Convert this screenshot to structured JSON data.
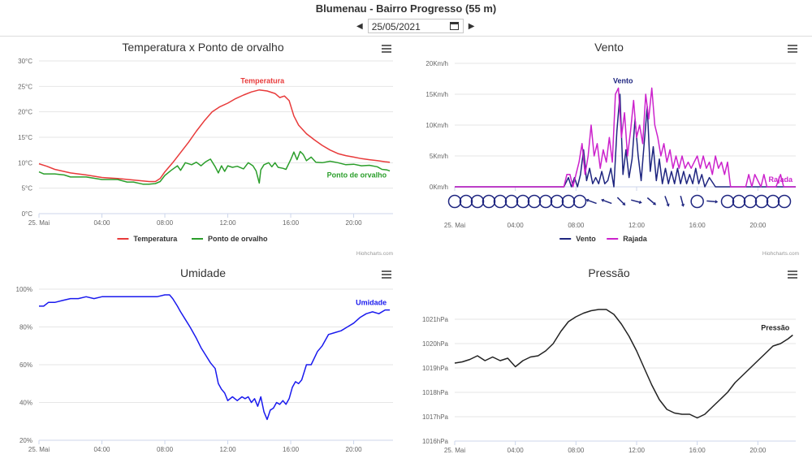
{
  "header": {
    "title": "Blumenau - Bairro Progresso (55 m)",
    "date": "25/05/2021"
  },
  "credits": "Highcharts.com",
  "chart_data": [
    {
      "type": "line",
      "title": "Temperatura x Ponto de orvalho",
      "y_unit": "°C",
      "ylim": [
        0,
        30
      ],
      "y_ticks": [
        0,
        5,
        10,
        15,
        20,
        25,
        30
      ],
      "xlim": [
        0,
        22.5
      ],
      "x_ticks": [
        0,
        4,
        8,
        12,
        16,
        20
      ],
      "x_tick_labels": [
        "25. Mai",
        "04:00",
        "08:00",
        "12:00",
        "16:00",
        "20:00"
      ],
      "series": [
        {
          "name": "Temperatura",
          "color": "#e83a3a",
          "end_label": false,
          "point_label": "Temperatura",
          "x": [
            0,
            0.5,
            1,
            2,
            3,
            4,
            5,
            6,
            7,
            7.4,
            7.7,
            8,
            8.5,
            9,
            9.5,
            10,
            10.5,
            11,
            11.5,
            12,
            12.5,
            13,
            13.5,
            14,
            14.5,
            15,
            15.3,
            15.6,
            15.9,
            16.2,
            16.5,
            17,
            17.5,
            18,
            18.5,
            19,
            19.5,
            20,
            20.5,
            21,
            21.5,
            22,
            22.3
          ],
          "values": [
            9.8,
            9.3,
            8.7,
            8,
            7.6,
            7.1,
            6.9,
            6.6,
            6.3,
            6.3,
            6.9,
            8.2,
            10,
            12,
            14,
            16.2,
            18.2,
            20,
            21,
            21.7,
            22.6,
            23.3,
            23.9,
            24.3,
            24.1,
            23.6,
            22.8,
            23.1,
            22.2,
            19.2,
            17.4,
            15.7,
            14.5,
            13.4,
            12.5,
            11.8,
            11.4,
            11.1,
            10.8,
            10.6,
            10.4,
            10.2,
            10.1
          ]
        },
        {
          "name": "Ponto de orvalho",
          "color": "#2b9e2b",
          "end_label": true,
          "x": [
            0,
            0.3,
            1,
            1.6,
            2,
            3,
            4,
            5,
            5.6,
            6,
            6.6,
            7,
            7.4,
            7.7,
            8,
            8.4,
            8.8,
            9,
            9.3,
            9.7,
            10,
            10.3,
            10.6,
            10.9,
            11.2,
            11.4,
            11.6,
            11.8,
            12,
            12.3,
            12.6,
            13,
            13.3,
            13.6,
            13.8,
            14,
            14.1,
            14.3,
            14.6,
            14.8,
            15,
            15.2,
            15.5,
            15.7,
            16,
            16.2,
            16.4,
            16.6,
            16.8,
            17,
            17.3,
            17.6,
            18,
            18.5,
            19,
            19.5,
            20,
            20.5,
            21,
            21.5,
            21.8,
            22.1,
            22.3
          ],
          "values": [
            8.2,
            7.8,
            7.8,
            7.6,
            7.2,
            7.2,
            6.7,
            6.7,
            6.2,
            6.2,
            5.8,
            5.8,
            5.9,
            6.3,
            7.5,
            8.5,
            9.4,
            8.5,
            10,
            9.6,
            10.1,
            9.4,
            10.2,
            10.7,
            9.2,
            8,
            9.4,
            8.3,
            9.4,
            9.1,
            9.3,
            8.8,
            10,
            9.4,
            8.4,
            6,
            8.6,
            9.6,
            10,
            9.2,
            10,
            9.1,
            8.9,
            8.7,
            10.6,
            12.1,
            10.6,
            12.2,
            11.6,
            10.4,
            11.1,
            10.1,
            10,
            10.3,
            10,
            9.6,
            9.7,
            9.4,
            9.5,
            9.2,
            8.7,
            8.6,
            8.4
          ]
        }
      ]
    },
    {
      "type": "line",
      "title": "Vento",
      "y_unit": "Km/h",
      "ylim": [
        0,
        20
      ],
      "y_ticks": [
        0,
        5,
        10,
        15,
        20
      ],
      "xlim": [
        0,
        22.5
      ],
      "x_ticks": [
        0,
        4,
        8,
        12,
        16,
        20
      ],
      "x_tick_labels": [
        "25. Mai",
        "04:00",
        "08:00",
        "12:00",
        "16:00",
        "20:00"
      ],
      "series": [
        {
          "name": "Vento",
          "color": "#1f2680",
          "end_label": false,
          "point_label": "Vento",
          "x": [
            0,
            7.2,
            7.5,
            7.7,
            7.9,
            8.1,
            8.3,
            8.5,
            8.7,
            8.9,
            9.1,
            9.3,
            9.5,
            9.7,
            9.9,
            10.1,
            10.3,
            10.5,
            10.7,
            10.9,
            11.1,
            11.3,
            11.5,
            11.7,
            11.9,
            12.1,
            12.3,
            12.5,
            12.7,
            12.9,
            13.1,
            13.3,
            13.5,
            13.7,
            13.9,
            14.1,
            14.3,
            14.5,
            14.7,
            14.9,
            15.1,
            15.3,
            15.5,
            15.7,
            15.9,
            16.1,
            16.3,
            16.5,
            16.8,
            17.2,
            22.5
          ],
          "values": [
            0,
            0,
            1.5,
            0,
            1.5,
            0,
            2,
            6,
            1,
            3,
            0.5,
            1.5,
            0.5,
            2.5,
            0.5,
            1,
            3,
            0,
            9,
            15,
            2,
            6,
            1.5,
            4.5,
            11,
            5,
            1,
            7,
            13,
            2.5,
            6.5,
            1,
            4.5,
            0.5,
            3,
            0.5,
            2.5,
            0.5,
            3,
            0.5,
            2.5,
            0.5,
            2,
            0.5,
            3,
            0.5,
            2,
            0,
            1.5,
            0,
            0
          ]
        },
        {
          "name": "Rajada",
          "color": "#cc22cc",
          "end_label": true,
          "x": [
            0,
            7.2,
            7.4,
            7.6,
            7.8,
            8,
            8.2,
            8.4,
            8.6,
            8.8,
            9,
            9.2,
            9.4,
            9.6,
            9.8,
            10,
            10.2,
            10.4,
            10.6,
            10.8,
            11,
            11.2,
            11.4,
            11.6,
            11.8,
            12,
            12.2,
            12.4,
            12.6,
            12.8,
            13,
            13.2,
            13.4,
            13.6,
            13.8,
            14,
            14.2,
            14.4,
            14.6,
            14.8,
            15,
            15.2,
            15.4,
            15.6,
            15.8,
            16,
            16.2,
            16.4,
            16.6,
            16.8,
            17,
            17.2,
            17.4,
            17.6,
            17.8,
            18,
            18.2,
            19.2,
            19.4,
            19.6,
            19.8,
            20.2,
            20.4,
            20.6,
            20.8,
            21.2,
            21.5,
            21.7,
            22.5
          ],
          "values": [
            0,
            0,
            2,
            2,
            0,
            2,
            4,
            7,
            2,
            5,
            10,
            5,
            7,
            3,
            6,
            4,
            8,
            4,
            15,
            16,
            8,
            12,
            5,
            9,
            14,
            8,
            10,
            7,
            15,
            11,
            16,
            10,
            8,
            5,
            7,
            4,
            6,
            3,
            5,
            3,
            5,
            3,
            4,
            3,
            4,
            5,
            3,
            5,
            3,
            4,
            2,
            5,
            3,
            4,
            2,
            4,
            0,
            0,
            2,
            0,
            2,
            0,
            2,
            0,
            0,
            0,
            2,
            0,
            0
          ]
        }
      ],
      "wind_direction": {
        "x": [
          0,
          0.75,
          1.5,
          2.25,
          3,
          3.75,
          4.5,
          5.25,
          6,
          6.75,
          7.5,
          8.25,
          9,
          10,
          11,
          12,
          13,
          14,
          15,
          16,
          17,
          18,
          18.75,
          19.5,
          20.25,
          21,
          21.75
        ],
        "kind": [
          "calm",
          "calm",
          "calm",
          "calm",
          "calm",
          "calm",
          "calm",
          "calm",
          "calm",
          "calm",
          "calm",
          "calm",
          "arrow",
          "arrow",
          "arrow",
          "arrow",
          "arrow",
          "arrow",
          "arrow",
          "calm",
          "arrow",
          "calm",
          "calm",
          "calm",
          "calm",
          "calm",
          "calm"
        ],
        "angle": [
          0,
          0,
          0,
          0,
          0,
          0,
          0,
          0,
          0,
          0,
          0,
          0,
          200,
          200,
          45,
          15,
          40,
          70,
          75,
          0,
          5,
          0,
          0,
          0,
          0,
          0,
          0
        ]
      }
    },
    {
      "type": "line",
      "title": "Umidade",
      "y_unit": "%",
      "ylim": [
        20,
        100
      ],
      "y_ticks": [
        20,
        40,
        60,
        80,
        100
      ],
      "xlim": [
        0,
        22.5
      ],
      "x_ticks": [
        0,
        4,
        8,
        12,
        16,
        20
      ],
      "x_tick_labels": [
        "25. Mai",
        "04:00",
        "08:00",
        "12:00",
        "16:00",
        "20:00"
      ],
      "series": [
        {
          "name": "Umidade",
          "color": "#1a1aee",
          "end_label": true,
          "x": [
            0,
            0.3,
            0.6,
            1,
            1.5,
            2,
            2.5,
            3,
            3.5,
            4,
            5,
            6,
            7,
            7.5,
            8,
            8.3,
            8.5,
            8.8,
            9,
            9.3,
            9.6,
            10,
            10.3,
            10.6,
            10.9,
            11.2,
            11.4,
            11.6,
            11.8,
            12,
            12.3,
            12.6,
            12.9,
            13.1,
            13.3,
            13.5,
            13.7,
            13.9,
            14.1,
            14.3,
            14.5,
            14.7,
            14.9,
            15.1,
            15.3,
            15.5,
            15.7,
            15.9,
            16.1,
            16.3,
            16.5,
            16.7,
            17,
            17.3,
            17.7,
            18,
            18.4,
            18.8,
            19.2,
            19.6,
            20,
            20.4,
            20.8,
            21.2,
            21.6,
            22,
            22.3
          ],
          "values": [
            91,
            91,
            93,
            93,
            94,
            95,
            95,
            96,
            95,
            96,
            96,
            96,
            96,
            96,
            97,
            97,
            95,
            91,
            88,
            84,
            80,
            74,
            69,
            65,
            61,
            58,
            50,
            47,
            45,
            41,
            43,
            41,
            43,
            42,
            43,
            40,
            42,
            38,
            43,
            35,
            31,
            36,
            37,
            40,
            39,
            41,
            39,
            42,
            48,
            51,
            50,
            52,
            60,
            60,
            67,
            70,
            76,
            77,
            78,
            80,
            82,
            85,
            87,
            88,
            87,
            89,
            89
          ]
        }
      ]
    },
    {
      "type": "line",
      "title": "Pressão",
      "y_unit": "hPa",
      "ylim": [
        1016,
        1021.5
      ],
      "y_ticks": [
        1016,
        1017,
        1018,
        1019,
        1020,
        1021
      ],
      "xlim": [
        0,
        22.5
      ],
      "x_ticks": [
        0,
        4,
        8,
        12,
        16,
        20
      ],
      "x_tick_labels": [
        "25. Mai",
        "04:00",
        "08:00",
        "12:00",
        "16:00",
        "20:00"
      ],
      "series": [
        {
          "name": "Pressão",
          "color": "#222222",
          "end_label": true,
          "x": [
            0,
            0.5,
            1,
            1.5,
            2,
            2.5,
            3,
            3.5,
            4,
            4.5,
            5,
            5.5,
            6,
            6.5,
            7,
            7.5,
            8,
            8.5,
            9,
            9.5,
            10,
            10.5,
            11,
            11.5,
            12,
            12.5,
            13,
            13.5,
            14,
            14.5,
            15,
            15.5,
            16,
            16.5,
            17,
            17.5,
            18,
            18.5,
            19,
            19.5,
            20,
            20.5,
            21,
            21.5,
            22,
            22.3
          ],
          "values": [
            1019.2,
            1019.25,
            1019.35,
            1019.5,
            1019.3,
            1019.45,
            1019.3,
            1019.4,
            1019.05,
            1019.3,
            1019.45,
            1019.5,
            1019.7,
            1020,
            1020.5,
            1020.9,
            1021.1,
            1021.25,
            1021.35,
            1021.4,
            1021.4,
            1021.2,
            1020.8,
            1020.3,
            1019.7,
            1019,
            1018.3,
            1017.7,
            1017.3,
            1017.15,
            1017.1,
            1017.1,
            1016.95,
            1017.1,
            1017.4,
            1017.7,
            1018,
            1018.4,
            1018.7,
            1019,
            1019.3,
            1019.6,
            1019.9,
            1020,
            1020.2,
            1020.35
          ]
        }
      ]
    }
  ]
}
